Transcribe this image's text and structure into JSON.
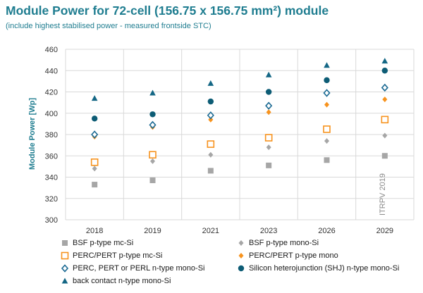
{
  "title": "Module Power for 72-cell (156.75 x 156.75 mm²) module",
  "subtitle": "(include highest stabilised power - measured frontside STC)",
  "chart_data": {
    "type": "scatter",
    "categories": [
      "2018",
      "2019",
      "2021",
      "2023",
      "2026",
      "2029"
    ],
    "ylabel": "Module Power [Wp]",
    "xlabel": "",
    "ylim": [
      300,
      460
    ],
    "yticks": [
      300,
      320,
      340,
      360,
      380,
      400,
      420,
      440,
      460
    ],
    "grid": true,
    "legend_position": "bottom",
    "watermark": "ITRPV 2019",
    "series": [
      {
        "name": "BSF p-type mc-Si",
        "marker": "square",
        "color": "#a6a6a6",
        "values": [
          333,
          337,
          346,
          351,
          356,
          360
        ]
      },
      {
        "name": "BSF  p-type mono-Si",
        "marker": "diamond",
        "color": "#a6a6a6",
        "values": [
          348,
          355,
          361,
          368,
          374,
          379
        ]
      },
      {
        "name": "PERC/PERT p-type mc-Si",
        "marker": "square-open",
        "color": "#f7931e",
        "values": [
          354,
          361,
          371,
          377,
          385,
          394
        ]
      },
      {
        "name": "PERC/PERT p-type mono",
        "marker": "diamond",
        "color": "#f7931e",
        "values": [
          378,
          387,
          394,
          401,
          408,
          413
        ]
      },
      {
        "name": "PERC, PERT or PERL n-type mono-Si",
        "marker": "diamond-open",
        "color": "#1b6a93",
        "values": [
          380,
          389,
          398,
          407,
          419,
          424
        ]
      },
      {
        "name": "Silicon heterojunction (SHJ) n-type mono-Si",
        "marker": "circle",
        "color": "#0d5c75",
        "values": [
          395,
          399,
          411,
          420,
          431,
          440
        ]
      },
      {
        "name": "back contact n-type mono-Si",
        "marker": "triangle",
        "color": "#146785",
        "values": [
          414,
          419,
          428,
          436,
          445,
          449
        ]
      }
    ]
  }
}
